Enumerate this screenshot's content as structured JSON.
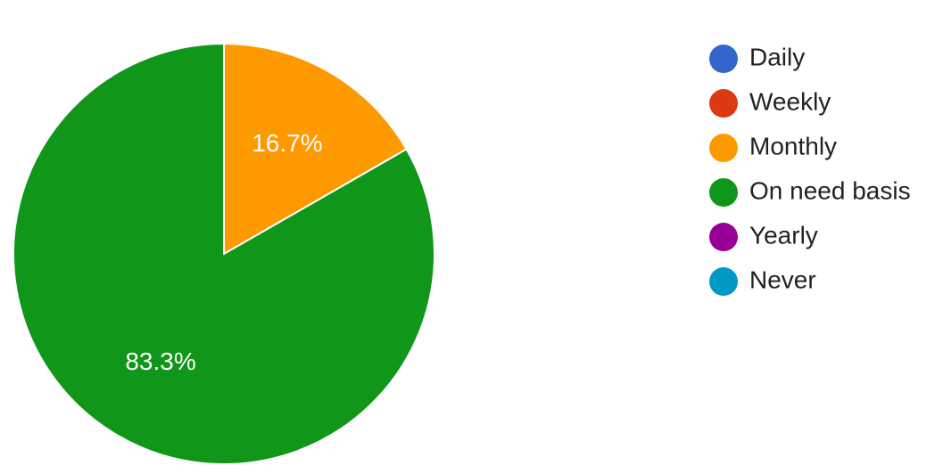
{
  "chart_data": {
    "type": "pie",
    "title": "",
    "categories": [
      "Daily",
      "Weekly",
      "Monthly",
      "On need basis",
      "Yearly",
      "Never"
    ],
    "values": [
      0,
      0,
      16.7,
      83.3,
      0,
      0
    ],
    "colors": [
      "#3366cc",
      "#dc3912",
      "#ff9900",
      "#109618",
      "#990099",
      "#0099c6"
    ],
    "data_labels": [
      "",
      "",
      "16.7%",
      "83.3%",
      "",
      ""
    ],
    "legend_position": "right",
    "start_angle_deg": 90,
    "direction": "clockwise"
  }
}
